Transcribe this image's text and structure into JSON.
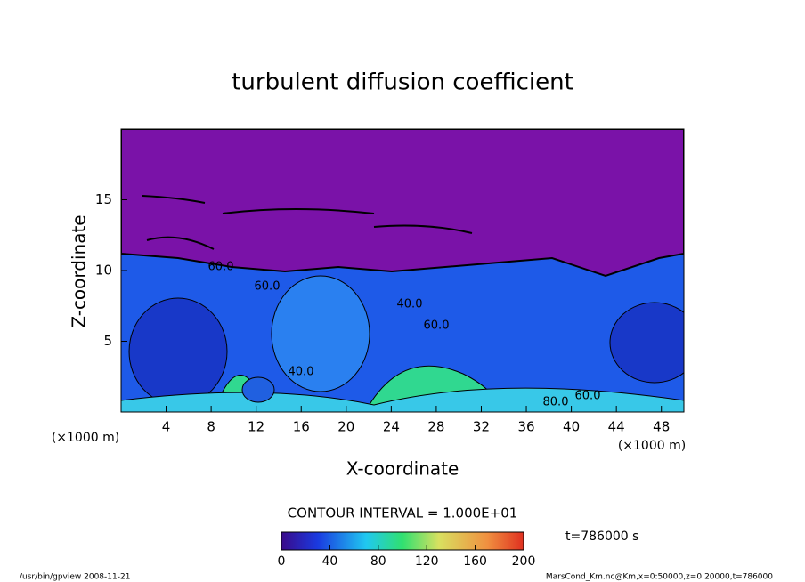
{
  "chart_data": {
    "type": "contour",
    "title": "turbulent diffusion coefficient",
    "x_label": "X-coordinate",
    "y_label": "Z-coordinate",
    "x_unit_left": "(×1000 m)",
    "x_unit_right": "(×1000 m)",
    "xlim": [
      0,
      50
    ],
    "xticks": [
      4,
      8,
      12,
      16,
      20,
      24,
      28,
      32,
      36,
      40,
      44,
      48
    ],
    "ylim": [
      0,
      20
    ],
    "yticks": [
      5,
      10,
      15
    ],
    "contour_labels": [
      "60.0",
      "40.0",
      "60.0",
      "40.0",
      "60.0",
      "80.0",
      "60.0"
    ],
    "contour_interval": "CONTOUR INTERVAL = 1.000E+01",
    "colorbar_lim": [
      0,
      200
    ],
    "colorbar_ticks": [
      0,
      40,
      80,
      120,
      160,
      200
    ],
    "time_label": "t=786000 s",
    "footer_left": "/usr/bin/gpview   2008-11-21",
    "footer_right": "MarsCond_Km.nc@Km,x=0:50000,z=0:20000,t=786000"
  }
}
